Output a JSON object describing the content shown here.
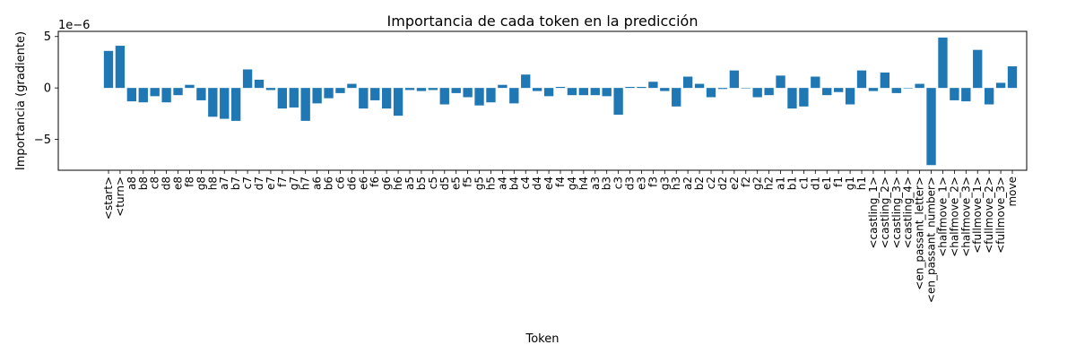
{
  "chart_data": {
    "type": "bar",
    "title": "Importancia de cada token en la predicción",
    "xlabel": "Token",
    "ylabel": "Importancia (gradiente)",
    "y_scale_label": "1e−6",
    "ylim": [
      -8.0,
      5.5
    ],
    "y_ticks": [
      -5,
      0,
      5
    ],
    "y_tick_labels": [
      "−5",
      "0",
      "5"
    ],
    "grid": false,
    "bar_color": "#1f77b4",
    "categories": [
      "<start>",
      "<turn>",
      "a8",
      "b8",
      "c8",
      "d8",
      "e8",
      "f8",
      "g8",
      "h8",
      "a7",
      "b7",
      "c7",
      "d7",
      "e7",
      "f7",
      "g7",
      "h7",
      "a6",
      "b6",
      "c6",
      "d6",
      "e6",
      "f6",
      "g6",
      "h6",
      "a5",
      "b5",
      "c5",
      "d5",
      "e5",
      "f5",
      "g5",
      "h5",
      "a4",
      "b4",
      "c4",
      "d4",
      "e4",
      "f4",
      "g4",
      "h4",
      "a3",
      "b3",
      "c3",
      "d3",
      "e3",
      "f3",
      "g3",
      "h3",
      "a2",
      "b2",
      "c2",
      "d2",
      "e2",
      "f2",
      "g2",
      "h2",
      "a1",
      "b1",
      "c1",
      "d1",
      "e1",
      "f1",
      "g1",
      "h1",
      "<castling_1>",
      "<castling_2>",
      "<castling_3>",
      "<castling_4>",
      "<en_passant_letter>",
      "<en_passant_number>",
      "<halfmove_1>",
      "<halfmove_2>",
      "<halfmove_3>",
      "<fullmove_1>",
      "<fullmove_2>",
      "<fullmove_3>",
      "move"
    ],
    "values": [
      3.6,
      4.1,
      -1.3,
      -1.4,
      -0.8,
      -1.4,
      -0.7,
      0.3,
      -1.2,
      -2.8,
      -3.0,
      -3.2,
      1.8,
      0.8,
      -0.2,
      -2.0,
      -1.9,
      -3.2,
      -1.5,
      -1.0,
      -0.5,
      0.4,
      -2.0,
      -1.2,
      -2.0,
      -2.7,
      -0.2,
      -0.3,
      -0.2,
      -1.6,
      -0.5,
      -0.9,
      -1.7,
      -1.4,
      0.3,
      -1.5,
      1.3,
      -0.3,
      -0.8,
      0.1,
      -0.7,
      -0.7,
      -0.7,
      -0.8,
      -2.6,
      0.1,
      0.1,
      0.6,
      -0.3,
      -1.8,
      1.1,
      0.4,
      -0.9,
      -0.1,
      1.7,
      0.0,
      -0.9,
      -0.7,
      1.2,
      -2.0,
      -1.8,
      1.1,
      -0.7,
      -0.4,
      -1.6,
      1.7,
      -0.3,
      1.5,
      -0.5,
      0.0,
      0.4,
      -7.5,
      4.9,
      -1.2,
      -1.3,
      3.7,
      -1.6,
      0.5,
      2.1
    ]
  }
}
